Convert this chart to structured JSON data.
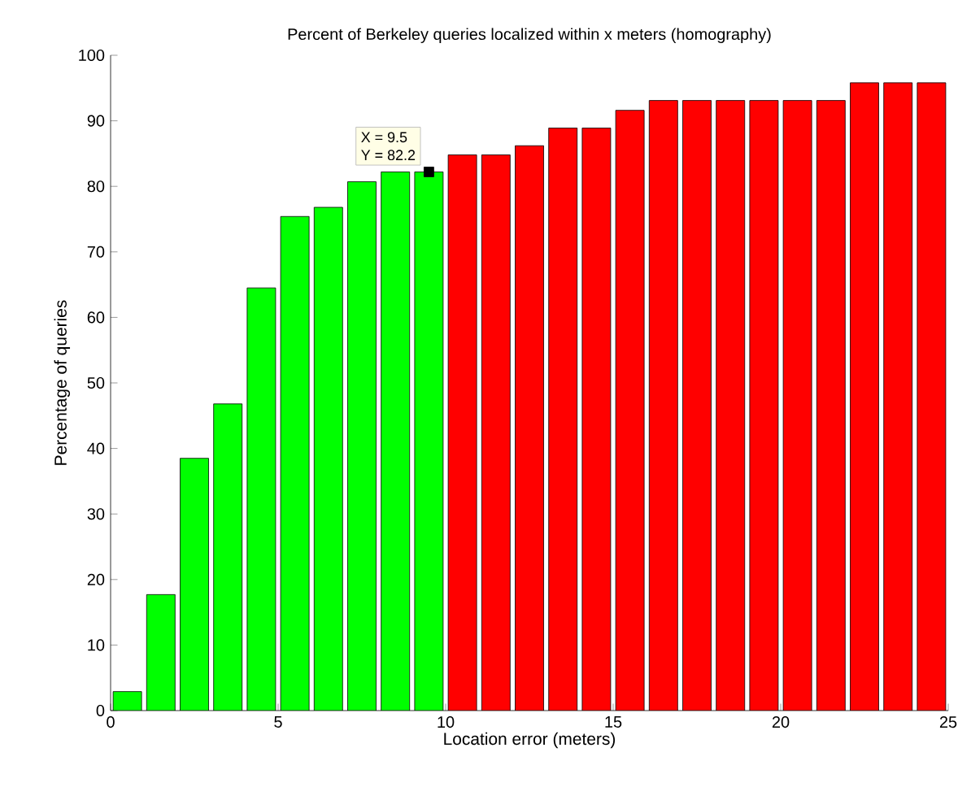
{
  "chart_data": {
    "type": "bar",
    "title": "Percent of Berkeley queries localized within x meters (homography)",
    "xlabel": "Location error (meters)",
    "ylabel": "Percentage of queries",
    "series": [
      {
        "color": "#00ff00",
        "x": [
          0.5,
          1.5,
          2.5,
          3.5,
          4.5,
          5.5,
          6.5,
          7.5,
          8.5,
          9.5
        ],
        "values": [
          2.9,
          17.7,
          38.5,
          46.8,
          64.5,
          75.4,
          76.8,
          80.7,
          82.2,
          82.2
        ]
      },
      {
        "color": "#ff0000",
        "x": [
          10.5,
          11.5,
          12.5,
          13.5,
          14.5,
          15.5,
          16.5,
          17.5,
          18.5,
          19.5,
          20.5,
          21.5,
          22.5,
          23.5,
          24.5
        ],
        "values": [
          84.8,
          84.8,
          86.2,
          88.9,
          88.9,
          91.6,
          93.1,
          93.1,
          93.1,
          93.1,
          93.1,
          93.1,
          95.8,
          95.8,
          95.8
        ]
      }
    ],
    "annotations": [
      {
        "text": "X = 9.5",
        "x": 9.5,
        "y": 82.2
      },
      "Y = 82.2"
    ],
    "xlim": [
      0,
      25
    ],
    "xticks": [
      0,
      5,
      10,
      15,
      20,
      25
    ],
    "ylim": [
      0,
      100
    ],
    "yticks": [
      0,
      10,
      20,
      30,
      40,
      50,
      60,
      70,
      80,
      90,
      100
    ],
    "grid": false
  }
}
